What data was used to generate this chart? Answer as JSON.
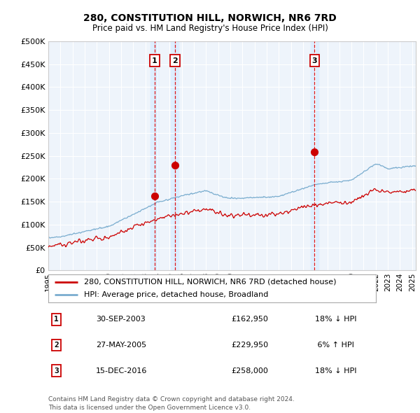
{
  "title": "280, CONSTITUTION HILL, NORWICH, NR6 7RD",
  "subtitle": "Price paid vs. HM Land Registry's House Price Index (HPI)",
  "ylim": [
    0,
    500000
  ],
  "yticks": [
    0,
    50000,
    100000,
    150000,
    200000,
    250000,
    300000,
    350000,
    400000,
    450000,
    500000
  ],
  "xlim_start": 1995.0,
  "xlim_end": 2025.3,
  "xticks": [
    1995,
    1996,
    1997,
    1998,
    1999,
    2000,
    2001,
    2002,
    2003,
    2004,
    2005,
    2006,
    2007,
    2008,
    2009,
    2010,
    2011,
    2012,
    2013,
    2014,
    2015,
    2016,
    2017,
    2018,
    2019,
    2020,
    2021,
    2022,
    2023,
    2024,
    2025
  ],
  "sales": [
    {
      "date_year": 2003.75,
      "price": 162950,
      "label": "1"
    },
    {
      "date_year": 2005.42,
      "price": 229950,
      "label": "2"
    },
    {
      "date_year": 2016.96,
      "price": 258000,
      "label": "3"
    }
  ],
  "sale_vline_color": "#dd0000",
  "sale_dot_color": "#cc0000",
  "hpi_line_color": "#7aadcf",
  "price_line_color": "#cc0000",
  "legend_label_price": "280, CONSTITUTION HILL, NORWICH, NR6 7RD (detached house)",
  "legend_label_hpi": "HPI: Average price, detached house, Broadland",
  "table_rows": [
    {
      "num": "1",
      "date": "30-SEP-2003",
      "price": "£162,950",
      "hpi": "18% ↓ HPI"
    },
    {
      "num": "2",
      "date": "27-MAY-2005",
      "price": "£229,950",
      "hpi": " 6% ↑ HPI"
    },
    {
      "num": "3",
      "date": "15-DEC-2016",
      "price": "£258,000",
      "hpi": "18% ↓ HPI"
    }
  ],
  "footer": "Contains HM Land Registry data © Crown copyright and database right 2024.\nThis data is licensed under the Open Government Licence v3.0.",
  "background_color": "#ffffff",
  "grid_color": "#cccccc",
  "span_color": "#ddeeff"
}
